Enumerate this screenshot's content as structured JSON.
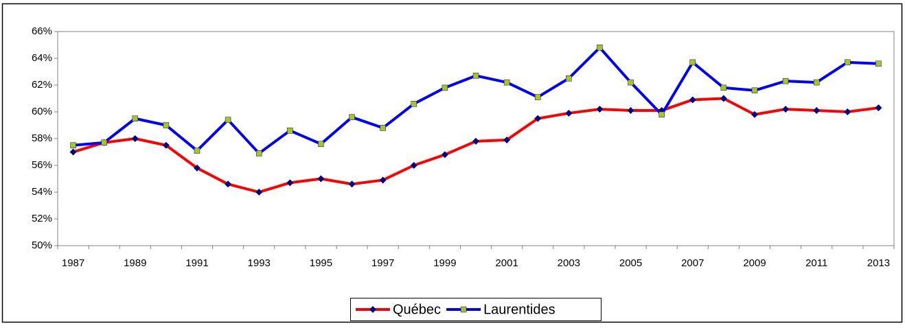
{
  "chart_data": {
    "type": "line",
    "categories": [
      "1987",
      null,
      "1989",
      null,
      "1991",
      null,
      "1993",
      null,
      "1995",
      null,
      "1997",
      null,
      "1999",
      null,
      "2001",
      null,
      "2003",
      null,
      "2005",
      null,
      "2007",
      null,
      "2009",
      null,
      "2011",
      null,
      "2013"
    ],
    "series": [
      {
        "name": "Québec",
        "color": "#ff0000",
        "marker": "diamond",
        "marker_color": "#000080",
        "values": [
          57.0,
          57.7,
          58.0,
          57.5,
          55.8,
          54.6,
          54.0,
          54.7,
          55.0,
          54.6,
          54.9,
          56.0,
          56.8,
          57.8,
          57.9,
          59.5,
          59.9,
          60.2,
          60.1,
          60.1,
          60.9,
          61.0,
          59.8,
          60.2,
          60.1,
          60.0,
          60.3
        ]
      },
      {
        "name": "Laurentides",
        "color": "#0000ff",
        "marker": "square",
        "marker_color": "#a6c81e",
        "values": [
          57.5,
          57.7,
          59.5,
          59.0,
          57.1,
          59.4,
          56.9,
          58.6,
          57.6,
          59.6,
          58.8,
          60.6,
          61.8,
          62.7,
          62.2,
          61.1,
          62.5,
          64.8,
          62.2,
          59.8,
          63.7,
          61.8,
          61.6,
          62.3,
          62.2,
          63.7,
          63.6
        ]
      }
    ],
    "ylim": [
      50,
      66
    ],
    "yticks": [
      {
        "value": 50,
        "label": "50%"
      },
      {
        "value": 52,
        "label": "52%"
      },
      {
        "value": 54,
        "label": "54%"
      },
      {
        "value": 56,
        "label": "56%"
      },
      {
        "value": 58,
        "label": "58%"
      },
      {
        "value": 60,
        "label": "60%"
      },
      {
        "value": 62,
        "label": "62%"
      },
      {
        "value": 64,
        "label": "64%"
      },
      {
        "value": 66,
        "label": "66%"
      }
    ],
    "grid": false,
    "legend": "bottom"
  }
}
